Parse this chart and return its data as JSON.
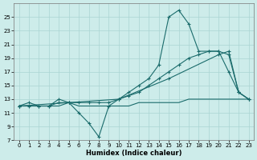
{
  "xlabel": "Humidex (Indice chaleur)",
  "xlim": [
    -0.5,
    23.5
  ],
  "ylim": [
    7,
    27
  ],
  "yticks": [
    7,
    9,
    11,
    13,
    15,
    17,
    19,
    21,
    23,
    25
  ],
  "xticks": [
    0,
    1,
    2,
    3,
    4,
    5,
    6,
    7,
    8,
    9,
    10,
    11,
    12,
    13,
    14,
    15,
    16,
    17,
    18,
    19,
    20,
    21,
    22,
    23
  ],
  "bg_color": "#cdecea",
  "grid_color": "#aad4d2",
  "line_color": "#1a6b6b",
  "zigzag_x": [
    0,
    1,
    2,
    3,
    4,
    5,
    6,
    7,
    8,
    9,
    10,
    11,
    12,
    13,
    14,
    15,
    16,
    17,
    18,
    19,
    20,
    21,
    22,
    23
  ],
  "zigzag_y": [
    12,
    12.5,
    12,
    12,
    13,
    12.5,
    11,
    9.5,
    7.5,
    12,
    13,
    14,
    15,
    16,
    18,
    25,
    26,
    24,
    20,
    20,
    20,
    17,
    14,
    13
  ],
  "smooth_x": [
    0,
    1,
    2,
    3,
    4,
    5,
    6,
    7,
    8,
    9,
    10,
    11,
    12,
    13,
    14,
    15,
    16,
    17,
    18,
    19,
    20,
    21,
    22,
    23
  ],
  "smooth_y": [
    12,
    12,
    12,
    12,
    12.5,
    12.5,
    12.5,
    12.5,
    12.5,
    12.5,
    13,
    13.5,
    14,
    15,
    16,
    17,
    18,
    19,
    19.5,
    20,
    20,
    19.5,
    14,
    13
  ],
  "linear1_x": [
    0,
    5,
    10,
    15,
    20,
    21,
    22,
    23
  ],
  "linear1_y": [
    12,
    12.5,
    13,
    16,
    19.5,
    20,
    14,
    13
  ],
  "flat_x": [
    0,
    1,
    2,
    3,
    4,
    5,
    6,
    7,
    8,
    9,
    10,
    11,
    12,
    13,
    14,
    15,
    16,
    17,
    18,
    19,
    20,
    21,
    22,
    23
  ],
  "flat_y": [
    12,
    12,
    12,
    12,
    12,
    12.5,
    12,
    12,
    12,
    12,
    12,
    12,
    12.5,
    12.5,
    12.5,
    12.5,
    12.5,
    13,
    13,
    13,
    13,
    13,
    13,
    13
  ]
}
